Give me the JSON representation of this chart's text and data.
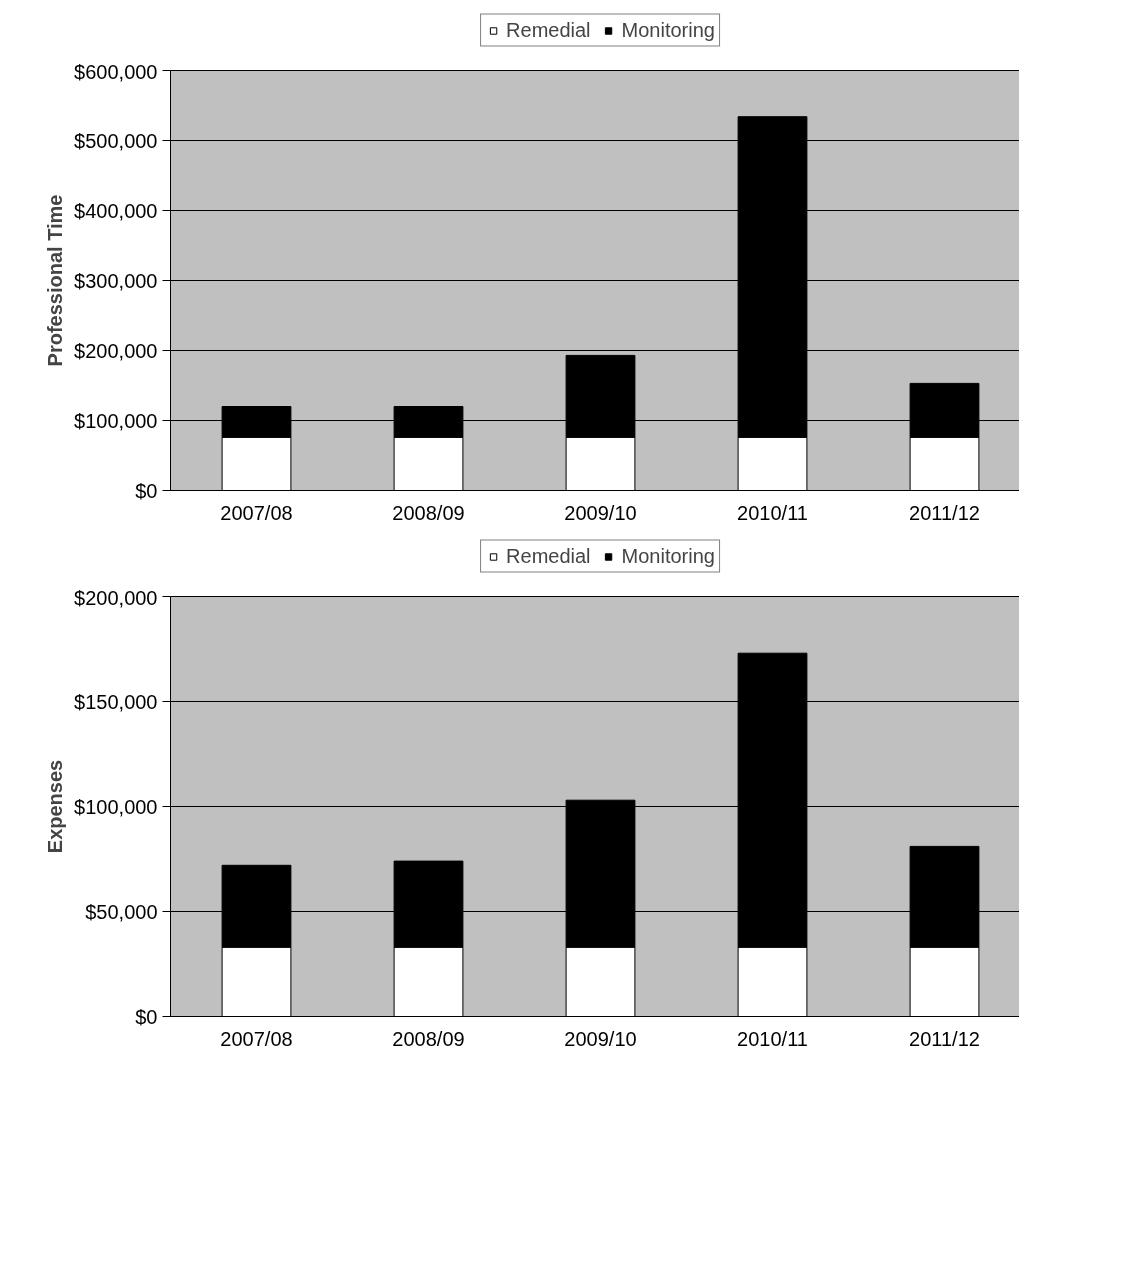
{
  "chart_data": [
    {
      "type": "bar",
      "stacked": true,
      "ylabel": "Professional Time",
      "categories": [
        "2007/08",
        "2008/09",
        "2009/10",
        "2010/11",
        "2011/12"
      ],
      "series": [
        {
          "name": "Remedial",
          "color": "#ffffff",
          "values": [
            76000,
            76000,
            76000,
            76000,
            76000
          ]
        },
        {
          "name": "Monitoring",
          "color": "#000000",
          "values": [
            44000,
            44000,
            117000,
            458000,
            77000
          ]
        }
      ],
      "ylim": [
        0,
        600000
      ],
      "yticks": [
        {
          "value": 0,
          "label": "$0"
        },
        {
          "value": 100000,
          "label": "$100,000"
        },
        {
          "value": 200000,
          "label": "$200,000"
        },
        {
          "value": 300000,
          "label": "$300,000"
        },
        {
          "value": 400000,
          "label": "$400,000"
        },
        {
          "value": 500000,
          "label": "$500,000"
        },
        {
          "value": 600000,
          "label": "$600,000"
        }
      ],
      "grid": "y",
      "legend": "top"
    },
    {
      "type": "bar",
      "stacked": true,
      "ylabel": "Expenses",
      "categories": [
        "2007/08",
        "2008/09",
        "2009/10",
        "2010/11",
        "2011/12"
      ],
      "series": [
        {
          "name": "Remedial",
          "color": "#ffffff",
          "values": [
            33000,
            33000,
            33000,
            33000,
            33000
          ]
        },
        {
          "name": "Monitoring",
          "color": "#000000",
          "values": [
            39000,
            41000,
            70000,
            140000,
            48000
          ]
        }
      ],
      "ylim": [
        0,
        200000
      ],
      "yticks": [
        {
          "value": 0,
          "label": "$0"
        },
        {
          "value": 50000,
          "label": "$50,000"
        },
        {
          "value": 100000,
          "label": "$100,000"
        },
        {
          "value": 150000,
          "label": "$150,000"
        },
        {
          "value": 200000,
          "label": "$200,000"
        }
      ],
      "grid": "y",
      "legend": "top"
    }
  ]
}
